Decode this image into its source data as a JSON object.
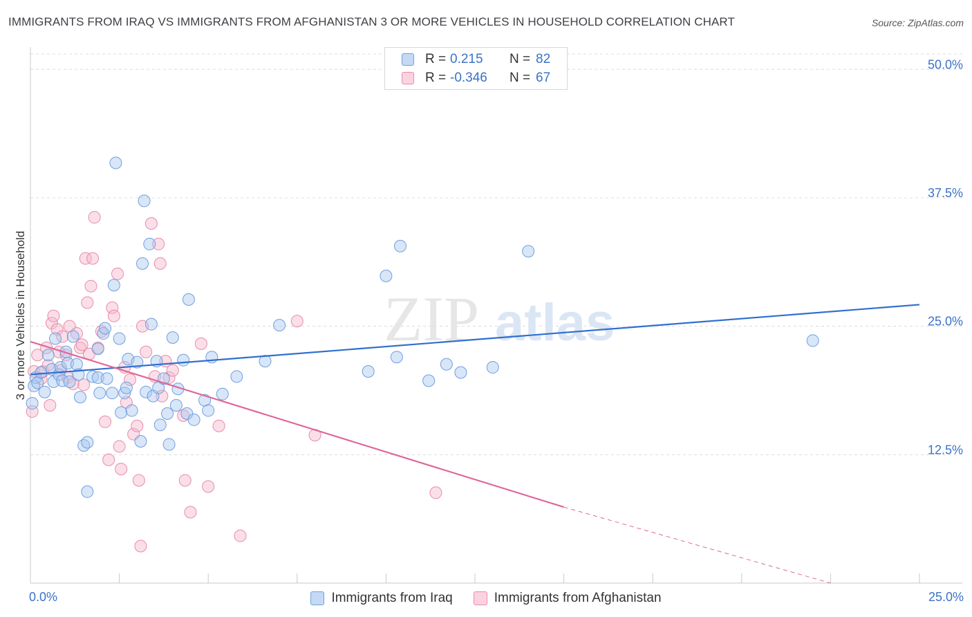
{
  "header": {
    "title": "IMMIGRANTS FROM IRAQ VS IMMIGRANTS FROM AFGHANISTAN 3 OR MORE VEHICLES IN HOUSEHOLD CORRELATION CHART",
    "source": "Source: ZipAtlas.com"
  },
  "legend": {
    "series1": {
      "r_label": "R =",
      "r_value": "0.215",
      "n_label": "N =",
      "n_value": "82"
    },
    "series2": {
      "r_label": "R =",
      "r_value": "-0.346",
      "n_label": "N =",
      "n_value": "67"
    }
  },
  "watermark": {
    "zip": "ZIP",
    "atlas": "atlas"
  },
  "colors": {
    "iraq_fill": "#a9c8f0",
    "iraq_stroke": "#6f9fdf",
    "iraq_line": "#2f6fcf",
    "afg_fill": "#f6b9cd",
    "afg_stroke": "#e98aaa",
    "afg_line": "#e0679a",
    "tick_text": "#3a72c9",
    "grid": "#dcdcdc"
  },
  "chart_data": {
    "type": "scatter",
    "title": "IMMIGRANTS FROM IRAQ VS IMMIGRANTS FROM AFGHANISTAN 3 OR MORE VEHICLES IN HOUSEHOLD CORRELATION CHART",
    "xlabel": "",
    "ylabel": "3 or more Vehicles in Household",
    "xlim": [
      0,
      25
    ],
    "ylim": [
      0,
      51.5
    ],
    "x_tick_labels": {
      "min": "0.0%",
      "max": "25.0%"
    },
    "y_ticks": [
      {
        "value": 12.5,
        "label": "12.5%"
      },
      {
        "value": 25.0,
        "label": "25.0%"
      },
      {
        "value": 37.5,
        "label": "37.5%"
      },
      {
        "value": 50.0,
        "label": "50.0%"
      }
    ],
    "series": [
      {
        "name": "Immigrants from Iraq",
        "r": 0.215,
        "n": 82,
        "trend": {
          "x": [
            0,
            25
          ],
          "y": [
            20.3,
            27.1
          ]
        },
        "points": [
          [
            0.05,
            17.5
          ],
          [
            0.1,
            19.2
          ],
          [
            0.15,
            20.0
          ],
          [
            0.2,
            19.5
          ],
          [
            0.3,
            20.5
          ],
          [
            0.4,
            18.6
          ],
          [
            0.5,
            22.2
          ],
          [
            0.6,
            20.8
          ],
          [
            0.65,
            19.6
          ],
          [
            0.7,
            23.8
          ],
          [
            0.8,
            20.3
          ],
          [
            0.85,
            21.0
          ],
          [
            0.9,
            19.7
          ],
          [
            1.0,
            22.5
          ],
          [
            1.05,
            21.4
          ],
          [
            1.1,
            19.6
          ],
          [
            1.2,
            24.0
          ],
          [
            1.3,
            21.3
          ],
          [
            1.35,
            20.3
          ],
          [
            1.4,
            18.1
          ],
          [
            1.5,
            13.4
          ],
          [
            1.6,
            13.7
          ],
          [
            1.6,
            8.9
          ],
          [
            1.75,
            20.1
          ],
          [
            1.9,
            20.0
          ],
          [
            1.9,
            22.8
          ],
          [
            1.95,
            18.5
          ],
          [
            2.05,
            24.3
          ],
          [
            2.1,
            24.8
          ],
          [
            2.15,
            19.9
          ],
          [
            2.3,
            18.5
          ],
          [
            2.35,
            29.0
          ],
          [
            2.4,
            40.9
          ],
          [
            2.5,
            23.8
          ],
          [
            2.55,
            16.6
          ],
          [
            2.65,
            18.5
          ],
          [
            2.7,
            19.0
          ],
          [
            2.75,
            21.8
          ],
          [
            2.85,
            16.8
          ],
          [
            3.0,
            21.5
          ],
          [
            3.1,
            13.8
          ],
          [
            3.15,
            31.1
          ],
          [
            3.2,
            37.2
          ],
          [
            3.25,
            18.6
          ],
          [
            3.35,
            33.0
          ],
          [
            3.4,
            25.2
          ],
          [
            3.45,
            18.2
          ],
          [
            3.55,
            21.6
          ],
          [
            3.6,
            19.0
          ],
          [
            3.65,
            15.4
          ],
          [
            3.75,
            19.9
          ],
          [
            3.85,
            16.5
          ],
          [
            3.9,
            13.5
          ],
          [
            4.0,
            23.9
          ],
          [
            4.1,
            17.3
          ],
          [
            4.15,
            18.9
          ],
          [
            4.3,
            21.7
          ],
          [
            4.4,
            16.5
          ],
          [
            4.45,
            27.6
          ],
          [
            4.6,
            15.9
          ],
          [
            4.9,
            17.8
          ],
          [
            5.0,
            16.8
          ],
          [
            5.1,
            22.0
          ],
          [
            5.4,
            18.4
          ],
          [
            5.8,
            20.1
          ],
          [
            6.6,
            21.6
          ],
          [
            7.0,
            25.1
          ],
          [
            9.5,
            20.6
          ],
          [
            10.0,
            29.9
          ],
          [
            10.3,
            22.0
          ],
          [
            10.4,
            32.8
          ],
          [
            11.2,
            19.7
          ],
          [
            11.7,
            21.3
          ],
          [
            12.1,
            20.5
          ],
          [
            13.0,
            21.0
          ],
          [
            14.0,
            32.3
          ],
          [
            22.0,
            23.6
          ]
        ]
      },
      {
        "name": "Immigrants from Afghanistan",
        "r": -0.346,
        "n": 67,
        "trend": {
          "x": [
            0,
            15.0
          ],
          "y": [
            23.5,
            7.4
          ]
        },
        "trend_dashed": {
          "x": [
            15.0,
            22.5
          ],
          "y": [
            7.4,
            0.0
          ]
        },
        "points": [
          [
            0.05,
            16.7
          ],
          [
            0.1,
            20.6
          ],
          [
            0.2,
            22.2
          ],
          [
            0.3,
            19.9
          ],
          [
            0.35,
            20.6
          ],
          [
            0.45,
            22.9
          ],
          [
            0.5,
            21.2
          ],
          [
            0.55,
            17.3
          ],
          [
            0.6,
            25.3
          ],
          [
            0.65,
            26.0
          ],
          [
            0.75,
            24.7
          ],
          [
            0.8,
            22.5
          ],
          [
            0.85,
            20.7
          ],
          [
            0.9,
            24.0
          ],
          [
            1.0,
            22.2
          ],
          [
            1.05,
            20.0
          ],
          [
            1.1,
            25.0
          ],
          [
            1.2,
            19.4
          ],
          [
            1.3,
            24.3
          ],
          [
            1.4,
            22.9
          ],
          [
            1.45,
            23.2
          ],
          [
            1.5,
            19.3
          ],
          [
            1.55,
            31.6
          ],
          [
            1.6,
            27.3
          ],
          [
            1.65,
            22.3
          ],
          [
            1.7,
            28.9
          ],
          [
            1.75,
            31.6
          ],
          [
            1.8,
            35.6
          ],
          [
            1.9,
            22.9
          ],
          [
            2.0,
            24.5
          ],
          [
            2.1,
            15.7
          ],
          [
            2.2,
            12.0
          ],
          [
            2.3,
            26.8
          ],
          [
            2.35,
            26.0
          ],
          [
            2.45,
            30.1
          ],
          [
            2.5,
            13.3
          ],
          [
            2.55,
            11.1
          ],
          [
            2.65,
            21.0
          ],
          [
            2.7,
            17.6
          ],
          [
            2.8,
            19.8
          ],
          [
            2.9,
            14.5
          ],
          [
            3.0,
            15.3
          ],
          [
            3.05,
            10.0
          ],
          [
            3.1,
            3.6
          ],
          [
            3.15,
            25.0
          ],
          [
            3.25,
            22.5
          ],
          [
            3.4,
            35.0
          ],
          [
            3.5,
            20.1
          ],
          [
            3.6,
            33.0
          ],
          [
            3.65,
            31.1
          ],
          [
            3.7,
            18.2
          ],
          [
            3.8,
            21.6
          ],
          [
            3.9,
            20.0
          ],
          [
            4.0,
            20.7
          ],
          [
            4.3,
            16.3
          ],
          [
            4.35,
            10.0
          ],
          [
            4.5,
            6.9
          ],
          [
            4.8,
            23.3
          ],
          [
            5.0,
            9.4
          ],
          [
            5.3,
            15.3
          ],
          [
            5.9,
            4.6
          ],
          [
            7.5,
            25.5
          ],
          [
            8.0,
            14.4
          ],
          [
            11.4,
            8.8
          ]
        ]
      }
    ],
    "legend_position": "top-center"
  },
  "bottom_legend": {
    "iraq": "Immigrants from Iraq",
    "afghanistan": "Immigrants from Afghanistan"
  }
}
